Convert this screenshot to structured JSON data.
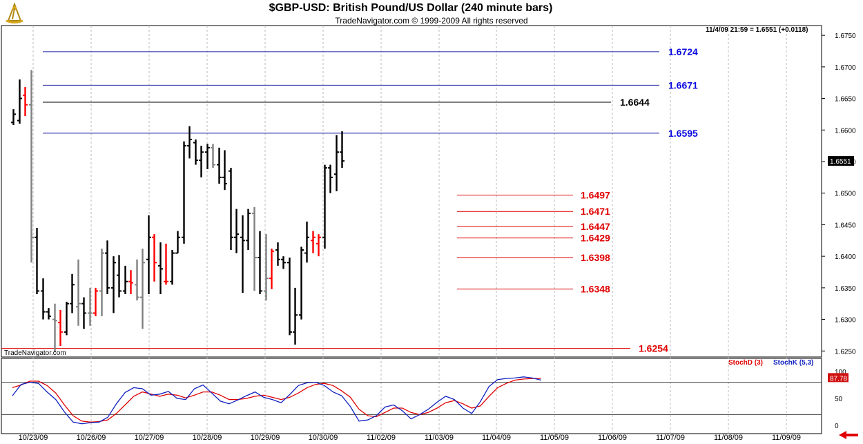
{
  "header": {
    "title": "$GBP-USD:  British Pound/US Dollar  (240 minute bars)",
    "copyright": "TradeNavigator.com © 1999-2009 All rights reserved",
    "readout": "11/4/09 21:59 = 1.6551 (+0.0118)",
    "watermark": "TradeNavigator.com"
  },
  "indicators": {
    "stoch_d_label": "StochD (3)",
    "stoch_k_label": "StochK (5,3)",
    "current_value": "87.78"
  },
  "colors": {
    "up": "#000000",
    "down": "#808080",
    "highlight": "#ff0000",
    "blue_line": "#1a1aa0",
    "black_line": "#000000",
    "red_line": "#e00000",
    "stoch_k": "#1020c0",
    "stoch_d": "#e00000"
  },
  "chart_data": {
    "type": "ohlc",
    "title": "$GBP-USD:  British Pound/US Dollar  (240 minute bars)",
    "x_ticks": [
      "10/23/09",
      "10/26/09",
      "10/27/09",
      "10/28/09",
      "10/29/09",
      "10/30/09",
      "11/02/09",
      "11/03/09",
      "11/04/09",
      "11/05/09",
      "11/06/09",
      "11/07/09",
      "11/08/09",
      "11/09/09"
    ],
    "y_ticks": [
      "1.6750",
      "1.6700",
      "1.6650",
      "1.6600",
      "1.6550",
      "1.6500",
      "1.6450",
      "1.6400",
      "1.6350",
      "1.6300",
      "1.6250"
    ],
    "y_range": [
      1.6235,
      1.676
    ],
    "last_price_label": "1.6551",
    "levels": [
      {
        "value": 1.6724,
        "label": "1.6724",
        "color": "blue"
      },
      {
        "value": 1.6671,
        "label": "1.6671",
        "color": "blue"
      },
      {
        "value": 1.6644,
        "label": "1.6644",
        "color": "black"
      },
      {
        "value": 1.6595,
        "label": "1.6595",
        "color": "blue"
      },
      {
        "value": 1.6497,
        "label": "1.6497",
        "color": "red"
      },
      {
        "value": 1.6471,
        "label": "1.6471",
        "color": "red"
      },
      {
        "value": 1.6447,
        "label": "1.6447",
        "color": "red"
      },
      {
        "value": 1.6429,
        "label": "1.6429",
        "color": "red"
      },
      {
        "value": 1.6398,
        "label": "1.6398",
        "color": "red"
      },
      {
        "value": 1.6348,
        "label": "1.6348",
        "color": "red"
      },
      {
        "value": 1.6254,
        "label": "1.6254",
        "color": "red"
      }
    ],
    "bars": [
      {
        "o": 1.6612,
        "h": 1.6633,
        "l": 1.6608,
        "c": 1.6625,
        "k": "up"
      },
      {
        "o": 1.6615,
        "h": 1.668,
        "l": 1.661,
        "c": 1.665,
        "k": "up"
      },
      {
        "o": 1.6655,
        "h": 1.6668,
        "l": 1.6622,
        "c": 1.664,
        "k": "hl"
      },
      {
        "o": 1.664,
        "h": 1.6695,
        "l": 1.639,
        "c": 1.643,
        "k": "dn"
      },
      {
        "o": 1.643,
        "h": 1.6445,
        "l": 1.634,
        "c": 1.6345,
        "k": "up"
      },
      {
        "o": 1.6345,
        "h": 1.6365,
        "l": 1.63,
        "c": 1.6312,
        "k": "up"
      },
      {
        "o": 1.6312,
        "h": 1.6318,
        "l": 1.63,
        "c": 1.6305,
        "k": "up"
      },
      {
        "o": 1.63,
        "h": 1.6325,
        "l": 1.6248,
        "c": 1.6298,
        "k": "dn"
      },
      {
        "o": 1.6295,
        "h": 1.6315,
        "l": 1.6258,
        "c": 1.628,
        "k": "hl"
      },
      {
        "o": 1.628,
        "h": 1.6328,
        "l": 1.6275,
        "c": 1.6325,
        "k": "up"
      },
      {
        "o": 1.6325,
        "h": 1.6372,
        "l": 1.631,
        "c": 1.6355,
        "k": "up"
      },
      {
        "o": 1.632,
        "h": 1.6395,
        "l": 1.629,
        "c": 1.6325,
        "k": "dn"
      },
      {
        "o": 1.6325,
        "h": 1.6335,
        "l": 1.6285,
        "c": 1.631,
        "k": "up"
      },
      {
        "o": 1.631,
        "h": 1.635,
        "l": 1.629,
        "c": 1.631,
        "k": "dn"
      },
      {
        "o": 1.631,
        "h": 1.635,
        "l": 1.6305,
        "c": 1.6345,
        "k": "hl"
      },
      {
        "o": 1.6345,
        "h": 1.6412,
        "l": 1.6305,
        "c": 1.6405,
        "k": "dn"
      },
      {
        "o": 1.6405,
        "h": 1.6425,
        "l": 1.634,
        "c": 1.635,
        "k": "up"
      },
      {
        "o": 1.635,
        "h": 1.64,
        "l": 1.631,
        "c": 1.639,
        "k": "up"
      },
      {
        "o": 1.637,
        "h": 1.6402,
        "l": 1.6335,
        "c": 1.6345,
        "k": "up"
      },
      {
        "o": 1.6345,
        "h": 1.6385,
        "l": 1.634,
        "c": 1.636,
        "k": "up"
      },
      {
        "o": 1.636,
        "h": 1.6378,
        "l": 1.634,
        "c": 1.6358,
        "k": "hl"
      },
      {
        "o": 1.6355,
        "h": 1.6395,
        "l": 1.633,
        "c": 1.6335,
        "k": "dn"
      },
      {
        "o": 1.6335,
        "h": 1.6412,
        "l": 1.6285,
        "c": 1.639,
        "k": "dn"
      },
      {
        "o": 1.6395,
        "h": 1.6465,
        "l": 1.634,
        "c": 1.643,
        "k": "up"
      },
      {
        "o": 1.643,
        "h": 1.6435,
        "l": 1.636,
        "c": 1.639,
        "k": "hl"
      },
      {
        "o": 1.6385,
        "h": 1.6422,
        "l": 1.634,
        "c": 1.638,
        "k": "up"
      },
      {
        "o": 1.636,
        "h": 1.642,
        "l": 1.6355,
        "c": 1.636,
        "k": "hl"
      },
      {
        "o": 1.636,
        "h": 1.641,
        "l": 1.6355,
        "c": 1.6405,
        "k": "up"
      },
      {
        "o": 1.6405,
        "h": 1.644,
        "l": 1.6405,
        "c": 1.643,
        "k": "up"
      },
      {
        "o": 1.643,
        "h": 1.6582,
        "l": 1.642,
        "c": 1.6575,
        "k": "up"
      },
      {
        "o": 1.6575,
        "h": 1.6606,
        "l": 1.6555,
        "c": 1.6585,
        "k": "up"
      },
      {
        "o": 1.658,
        "h": 1.6585,
        "l": 1.6545,
        "c": 1.6552,
        "k": "up"
      },
      {
        "o": 1.6552,
        "h": 1.6575,
        "l": 1.6525,
        "c": 1.6565,
        "k": "up"
      },
      {
        "o": 1.6565,
        "h": 1.6578,
        "l": 1.6538,
        "c": 1.6572,
        "k": "up"
      },
      {
        "o": 1.6572,
        "h": 1.6578,
        "l": 1.654,
        "c": 1.6545,
        "k": "dn"
      },
      {
        "o": 1.6545,
        "h": 1.6572,
        "l": 1.6515,
        "c": 1.6525,
        "k": "up"
      },
      {
        "o": 1.6525,
        "h": 1.6568,
        "l": 1.6505,
        "c": 1.6515,
        "k": "up"
      },
      {
        "o": 1.6535,
        "h": 1.654,
        "l": 1.641,
        "c": 1.643,
        "k": "up"
      },
      {
        "o": 1.643,
        "h": 1.6475,
        "l": 1.6405,
        "c": 1.6435,
        "k": "up"
      },
      {
        "o": 1.643,
        "h": 1.6465,
        "l": 1.6342,
        "c": 1.6425,
        "k": "up"
      },
      {
        "o": 1.6425,
        "h": 1.6475,
        "l": 1.641,
        "c": 1.6468,
        "k": "up"
      },
      {
        "o": 1.6468,
        "h": 1.6478,
        "l": 1.6345,
        "c": 1.6398,
        "k": "dn"
      },
      {
        "o": 1.6398,
        "h": 1.644,
        "l": 1.634,
        "c": 1.6345,
        "k": "up"
      },
      {
        "o": 1.6345,
        "h": 1.6435,
        "l": 1.633,
        "c": 1.6365,
        "k": "dn"
      },
      {
        "o": 1.6365,
        "h": 1.6412,
        "l": 1.6348,
        "c": 1.6408,
        "k": "hl"
      },
      {
        "o": 1.641,
        "h": 1.6422,
        "l": 1.6385,
        "c": 1.6395,
        "k": "up"
      },
      {
        "o": 1.6395,
        "h": 1.64,
        "l": 1.638,
        "c": 1.639,
        "k": "up"
      },
      {
        "o": 1.639,
        "h": 1.6398,
        "l": 1.6275,
        "c": 1.628,
        "k": "up"
      },
      {
        "o": 1.628,
        "h": 1.635,
        "l": 1.626,
        "c": 1.6307,
        "k": "up"
      },
      {
        "o": 1.6307,
        "h": 1.6415,
        "l": 1.63,
        "c": 1.641,
        "k": "up"
      },
      {
        "o": 1.6405,
        "h": 1.6455,
        "l": 1.639,
        "c": 1.643,
        "k": "up"
      },
      {
        "o": 1.6425,
        "h": 1.644,
        "l": 1.6405,
        "c": 1.643,
        "k": "hl"
      },
      {
        "o": 1.642,
        "h": 1.6435,
        "l": 1.64,
        "c": 1.643,
        "k": "hl"
      },
      {
        "o": 1.643,
        "h": 1.6545,
        "l": 1.6412,
        "c": 1.654,
        "k": "up"
      },
      {
        "o": 1.654,
        "h": 1.6545,
        "l": 1.65,
        "c": 1.6525,
        "k": "up"
      },
      {
        "o": 1.653,
        "h": 1.6592,
        "l": 1.6503,
        "c": 1.6565,
        "k": "up"
      },
      {
        "o": 1.6565,
        "h": 1.6598,
        "l": 1.654,
        "c": 1.6551,
        "k": "up"
      }
    ]
  },
  "stochastic": {
    "ticks": [
      "100",
      "50",
      "0"
    ],
    "range": [
      0,
      100
    ],
    "k": [
      55,
      76,
      80,
      78,
      62,
      48,
      25,
      6,
      3,
      5,
      6,
      15,
      40,
      61,
      70,
      68,
      56,
      58,
      63,
      50,
      48,
      68,
      75,
      60,
      45,
      40,
      47,
      55,
      62,
      52,
      48,
      42,
      57,
      74,
      79,
      80,
      74,
      62,
      55,
      35,
      8,
      10,
      18,
      34,
      38,
      27,
      12,
      20,
      30,
      43,
      54,
      48,
      32,
      22,
      44,
      72,
      85,
      87,
      88,
      90,
      88,
      84
    ],
    "d": [
      70,
      75,
      82,
      82,
      74,
      60,
      38,
      18,
      8,
      6,
      7,
      10,
      22,
      38,
      54,
      62,
      58,
      54,
      58,
      56,
      51,
      56,
      62,
      62,
      56,
      48,
      48,
      50,
      54,
      56,
      52,
      48,
      52,
      60,
      70,
      76,
      78,
      74,
      64,
      52,
      30,
      18,
      16,
      24,
      32,
      32,
      24,
      20,
      24,
      32,
      42,
      46,
      40,
      32,
      36,
      54,
      70,
      78,
      84,
      86,
      87,
      87
    ]
  }
}
